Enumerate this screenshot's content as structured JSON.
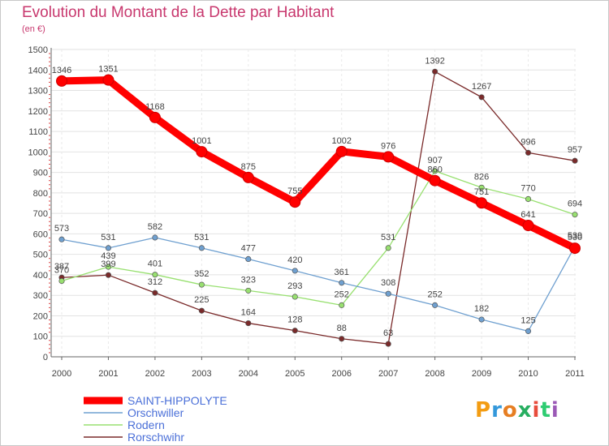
{
  "title": "Evolution du Montant de la Dette par Habitant",
  "subtitle": "(en €)",
  "logo": {
    "letters": [
      "P",
      "r",
      "o",
      "x",
      "i",
      "t",
      "i"
    ],
    "colors": [
      "#f39c12",
      "#3498db",
      "#e67e22",
      "#27ae60",
      "#e74c3c",
      "#2ecc71",
      "#9b59b6"
    ]
  },
  "chart_data": {
    "type": "line",
    "x": [
      "2000",
      "2001",
      "2002",
      "2003",
      "2004",
      "2005",
      "2006",
      "2007",
      "2008",
      "2009",
      "2010",
      "2011"
    ],
    "ylim": [
      0,
      1500
    ],
    "yticks": [
      0,
      100,
      200,
      300,
      400,
      500,
      600,
      700,
      800,
      900,
      1000,
      1100,
      1200,
      1300,
      1400,
      1500
    ],
    "grid": true,
    "legend": "bottom-left",
    "series": [
      {
        "name": "SAINT-HIPPOLYTE",
        "color": "#ff0000",
        "values": [
          1346,
          1351,
          1168,
          1001,
          875,
          755,
          1002,
          976,
          860,
          751,
          641,
          530
        ]
      },
      {
        "name": "Orschwiller",
        "color": "#6fa0d0",
        "values": [
          573,
          531,
          582,
          531,
          477,
          420,
          361,
          308,
          252,
          182,
          125,
          539
        ]
      },
      {
        "name": "Rodern",
        "color": "#98e070",
        "values": [
          370,
          439,
          401,
          352,
          323,
          293,
          252,
          531,
          907,
          826,
          770,
          694
        ]
      },
      {
        "name": "Rorschwihr",
        "color": "#7a2a2a",
        "values": [
          387,
          399,
          312,
          225,
          164,
          128,
          88,
          63,
          1392,
          1267,
          996,
          957
        ]
      }
    ]
  }
}
